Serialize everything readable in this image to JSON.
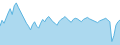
{
  "chart_data": {
    "type": "area",
    "values": [
      85,
      105,
      95,
      115,
      130,
      145,
      125,
      155,
      165,
      150,
      135,
      120,
      108,
      95,
      85,
      72,
      90,
      100,
      85,
      78,
      95,
      108,
      100,
      112,
      118,
      108,
      100,
      95,
      88,
      100,
      108,
      112,
      118,
      110,
      104,
      98,
      108,
      112,
      110,
      104,
      100,
      108,
      112,
      115,
      110,
      106,
      103,
      100,
      97,
      103,
      106,
      110,
      112,
      106,
      100,
      32,
      52,
      88,
      100,
      106
    ],
    "color": "#5ab4e0",
    "xlim": [
      0,
      59
    ],
    "ylim": [
      20,
      175
    ],
    "tick_labels": false,
    "grid": false
  }
}
